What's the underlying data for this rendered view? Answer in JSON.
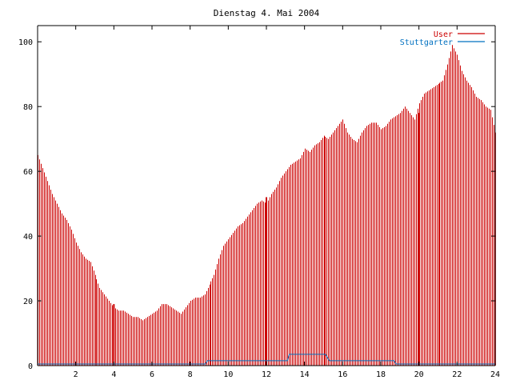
{
  "chart_data": {
    "type": "bar",
    "title": "Dienstag 4. Mai 2004",
    "xlim": [
      0,
      24
    ],
    "ylim": [
      0,
      105
    ],
    "x_ticks": [
      2,
      4,
      6,
      8,
      10,
      12,
      14,
      16,
      18,
      20,
      22,
      24
    ],
    "y_ticks": [
      0,
      20,
      40,
      60,
      80,
      100
    ],
    "legend_position": "top-right",
    "colors": {
      "user": "#cc0000",
      "stuttgarter": "#0070c0",
      "axis": "#000000"
    },
    "series": [
      {
        "name": "User",
        "style": "impulses",
        "color": "#cc0000",
        "points": [
          [
            0.0,
            65
          ],
          [
            0.25,
            61
          ],
          [
            0.5,
            57
          ],
          [
            0.75,
            53
          ],
          [
            1.0,
            50
          ],
          [
            1.25,
            47
          ],
          [
            1.5,
            45
          ],
          [
            1.75,
            42
          ],
          [
            2.0,
            38
          ],
          [
            2.25,
            35
          ],
          [
            2.5,
            33
          ],
          [
            2.75,
            32
          ],
          [
            3.0,
            28
          ],
          [
            3.25,
            24
          ],
          [
            3.5,
            22
          ],
          [
            3.75,
            20
          ],
          [
            4.0,
            18
          ],
          [
            4.25,
            17
          ],
          [
            4.5,
            17
          ],
          [
            4.75,
            16
          ],
          [
            5.0,
            15
          ],
          [
            5.25,
            15
          ],
          [
            5.5,
            14
          ],
          [
            5.75,
            15
          ],
          [
            6.0,
            16
          ],
          [
            6.25,
            17
          ],
          [
            6.5,
            19
          ],
          [
            6.75,
            19
          ],
          [
            7.0,
            18
          ],
          [
            7.25,
            17
          ],
          [
            7.5,
            16
          ],
          [
            7.75,
            18
          ],
          [
            8.0,
            20
          ],
          [
            8.25,
            21
          ],
          [
            8.5,
            21
          ],
          [
            8.75,
            22
          ],
          [
            9.0,
            25
          ],
          [
            9.25,
            28
          ],
          [
            9.5,
            33
          ],
          [
            9.75,
            37
          ],
          [
            10.0,
            39
          ],
          [
            10.25,
            41
          ],
          [
            10.5,
            43
          ],
          [
            10.75,
            44
          ],
          [
            11.0,
            46
          ],
          [
            11.25,
            48
          ],
          [
            11.5,
            50
          ],
          [
            11.75,
            51
          ],
          [
            12.0,
            50
          ],
          [
            12.25,
            53
          ],
          [
            12.5,
            55
          ],
          [
            12.75,
            58
          ],
          [
            13.0,
            60
          ],
          [
            13.25,
            62
          ],
          [
            13.5,
            63
          ],
          [
            13.75,
            64
          ],
          [
            14.0,
            67
          ],
          [
            14.25,
            66
          ],
          [
            14.5,
            68
          ],
          [
            14.75,
            69
          ],
          [
            15.0,
            71
          ],
          [
            15.25,
            70
          ],
          [
            15.5,
            72
          ],
          [
            15.75,
            74
          ],
          [
            16.0,
            76
          ],
          [
            16.25,
            72
          ],
          [
            16.5,
            70
          ],
          [
            16.75,
            69
          ],
          [
            17.0,
            72
          ],
          [
            17.25,
            74
          ],
          [
            17.5,
            75
          ],
          [
            17.75,
            75
          ],
          [
            18.0,
            73
          ],
          [
            18.25,
            74
          ],
          [
            18.5,
            76
          ],
          [
            18.75,
            77
          ],
          [
            19.0,
            78
          ],
          [
            19.25,
            80
          ],
          [
            19.5,
            78
          ],
          [
            19.75,
            76
          ],
          [
            20.0,
            81
          ],
          [
            20.25,
            84
          ],
          [
            20.5,
            85
          ],
          [
            20.75,
            86
          ],
          [
            21.0,
            87
          ],
          [
            21.25,
            88
          ],
          [
            21.5,
            93
          ],
          [
            21.75,
            99
          ],
          [
            22.0,
            96
          ],
          [
            22.25,
            91
          ],
          [
            22.5,
            88
          ],
          [
            22.75,
            86
          ],
          [
            23.0,
            83
          ],
          [
            23.25,
            82
          ],
          [
            23.5,
            80
          ],
          [
            23.75,
            79
          ],
          [
            24.0,
            72
          ]
        ],
        "impulses": [
          [
            4.0,
            19
          ],
          [
            12.0,
            52
          ],
          [
            20.0,
            78
          ]
        ]
      },
      {
        "name": "Stuttgarter",
        "style": "lines",
        "color": "#0070c0",
        "points": [
          [
            0,
            0.5
          ],
          [
            8.8,
            0.5
          ],
          [
            8.9,
            1.5
          ],
          [
            13.1,
            1.5
          ],
          [
            13.2,
            3.5
          ],
          [
            15.1,
            3.5
          ],
          [
            15.3,
            1.5
          ],
          [
            18.7,
            1.5
          ],
          [
            18.8,
            0.5
          ],
          [
            24,
            0.5
          ]
        ]
      }
    ]
  }
}
